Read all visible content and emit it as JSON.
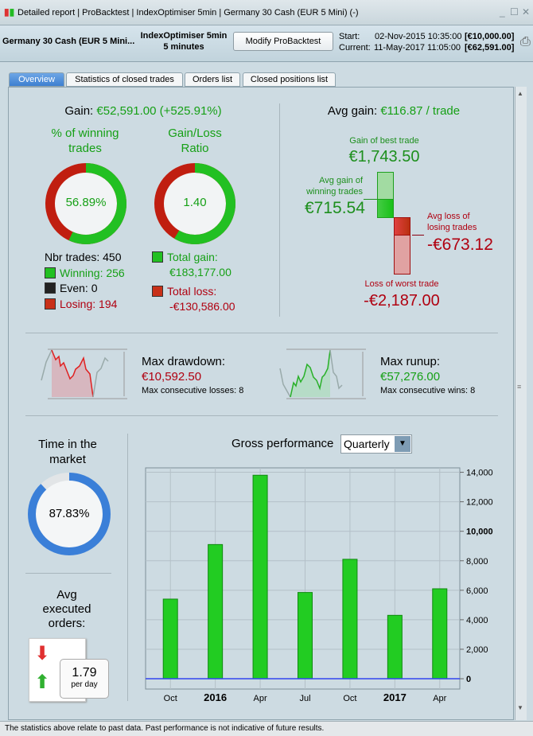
{
  "titlebar": {
    "title": "Detailed report | ProBacktest | IndexOptimiser 5min | Germany 30 Cash (EUR 5 Mini) (-)",
    "minimize": "_",
    "maximize": "☐",
    "close": "✕"
  },
  "header": {
    "instrument": "Germany 30 Cash (EUR 5 Mini...",
    "system": "IndexOptimiser 5min",
    "timeframe": "5 minutes",
    "modify_button": "Modify ProBacktest",
    "start_label": "Start:",
    "start_date": "02-Nov-2015 10:35:00",
    "start_capital": "[€10,000.00]",
    "current_label": "Current:",
    "current_date": "11-May-2017 11:05:00",
    "current_capital": "[€62,591.00]"
  },
  "tabs": [
    {
      "label": "Overview",
      "active": true
    },
    {
      "label": "Statistics of closed trades"
    },
    {
      "label": "Orders list"
    },
    {
      "label": "Closed positions list"
    }
  ],
  "gain": {
    "label": "Gain:",
    "value": "€52,591.00 (+525.91%)"
  },
  "winning": {
    "title1": "% of winning",
    "title2": "trades",
    "percent": "56.89%",
    "fraction": 0.5689,
    "nbr_trades": "Nbr trades: 450",
    "winning": "Winning: 256",
    "even": "Even: 0",
    "losing": "Losing: 194"
  },
  "ratio": {
    "title1": "Gain/Loss",
    "title2": "Ratio",
    "value": "1.40",
    "gain_fraction": 0.584,
    "total_gain_label": "Total gain:",
    "total_gain": "€183,177.00",
    "total_loss_label": "Total loss:",
    "total_loss": "-€130,586.00"
  },
  "avg": {
    "label": "Avg gain:",
    "value": "€116.87 / trade",
    "best_label": "Gain of best trade",
    "best": "€1,743.50",
    "avg_win_label1": "Avg gain of",
    "avg_win_label2": "winning trades",
    "avg_win": "€715.54",
    "avg_loss_label1": "Avg loss of",
    "avg_loss_label2": "losing trades",
    "avg_loss": "-€673.12",
    "worst_label": "Loss of worst trade",
    "worst": "-€2,187.00"
  },
  "drawdown": {
    "label": "Max drawdown:",
    "value": "€10,592.50",
    "consec": "Max consecutive losses: 8"
  },
  "runup": {
    "label": "Max runup:",
    "value": "€57,276.00",
    "consec": "Max consecutive wins: 8"
  },
  "market": {
    "title1": "Time in the",
    "title2": "market",
    "percent": "87.83%",
    "fraction": 0.8783
  },
  "orders": {
    "title1": "Avg",
    "title2": "executed",
    "title3": "orders:",
    "value": "1.79",
    "unit": "per day"
  },
  "perf": {
    "title": "Gross performance",
    "period": "Quarterly"
  },
  "chart_data": {
    "type": "bar",
    "categories": [
      "Oct",
      "2016",
      "Apr",
      "Jul",
      "Oct",
      "2017",
      "Apr"
    ],
    "bold_categories": [
      "2016",
      "2017"
    ],
    "values": [
      5400,
      9100,
      13800,
      5850,
      8100,
      4300,
      6100
    ],
    "ylim": [
      -700,
      14300
    ],
    "yticks": [
      "0",
      "2,000",
      "4,000",
      "6,000",
      "8,000",
      "10,000",
      "12,000",
      "14,000"
    ],
    "ytick_values": [
      0,
      2000,
      4000,
      6000,
      8000,
      10000,
      12000,
      14000
    ],
    "grid": true,
    "bar_color": "#22cc22",
    "zero_line_color": "#3344ee"
  },
  "footer": "The statistics above relate to past data. Past performance is not indicative of future results.",
  "colors": {
    "green": "#16a016",
    "red": "#b00010",
    "blue": "#3a7fd8"
  }
}
